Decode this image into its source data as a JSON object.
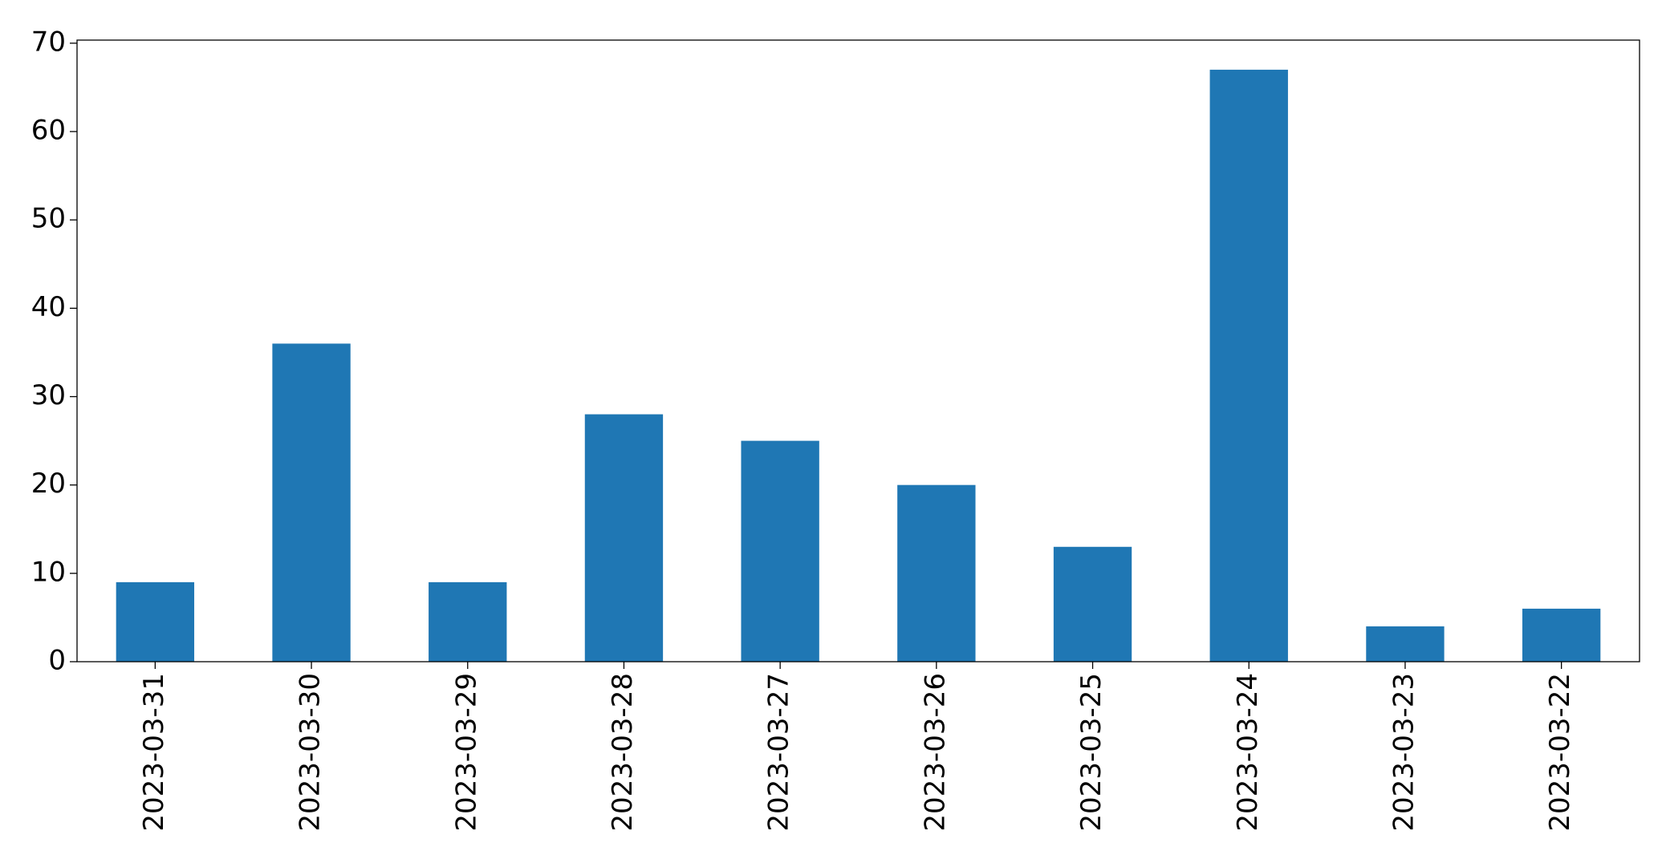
{
  "chart_data": {
    "type": "bar",
    "categories": [
      "2023-03-31",
      "2023-03-30",
      "2023-03-29",
      "2023-03-28",
      "2023-03-27",
      "2023-03-26",
      "2023-03-25",
      "2023-03-24",
      "2023-03-23",
      "2023-03-22"
    ],
    "values": [
      9,
      36,
      9,
      28,
      25,
      20,
      13,
      67,
      4,
      6
    ],
    "color": "#1f77b4",
    "ylim": [
      0,
      70.35
    ],
    "yticks": [
      0,
      10,
      20,
      30,
      40,
      50,
      60,
      70
    ],
    "grid": false
  }
}
